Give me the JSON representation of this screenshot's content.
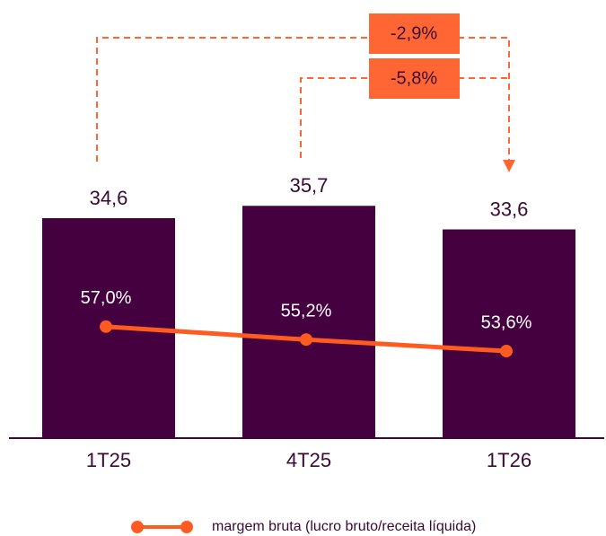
{
  "chart_data": {
    "type": "bar",
    "categories": [
      "1T25",
      "4T25",
      "1T26"
    ],
    "series": [
      {
        "type": "bar",
        "color": "#450040",
        "values": [
          34.6,
          35.7,
          33.6
        ],
        "value_labels": [
          "34,6",
          "35,7",
          "33,6"
        ]
      },
      {
        "type": "line",
        "axis": "y2",
        "name": "margem bruta (lucro bruto/receita líquida)",
        "color": "#ff5a1f",
        "values": [
          57.0,
          55.2,
          53.6
        ],
        "value_labels": [
          "57,0%",
          "55,2%",
          "53,6%"
        ]
      }
    ],
    "ylim": [
      15,
      40
    ],
    "y2lim": [
      41.5,
      80.5
    ],
    "annotations": [
      "-2,9%",
      "-5,8%"
    ]
  }
}
